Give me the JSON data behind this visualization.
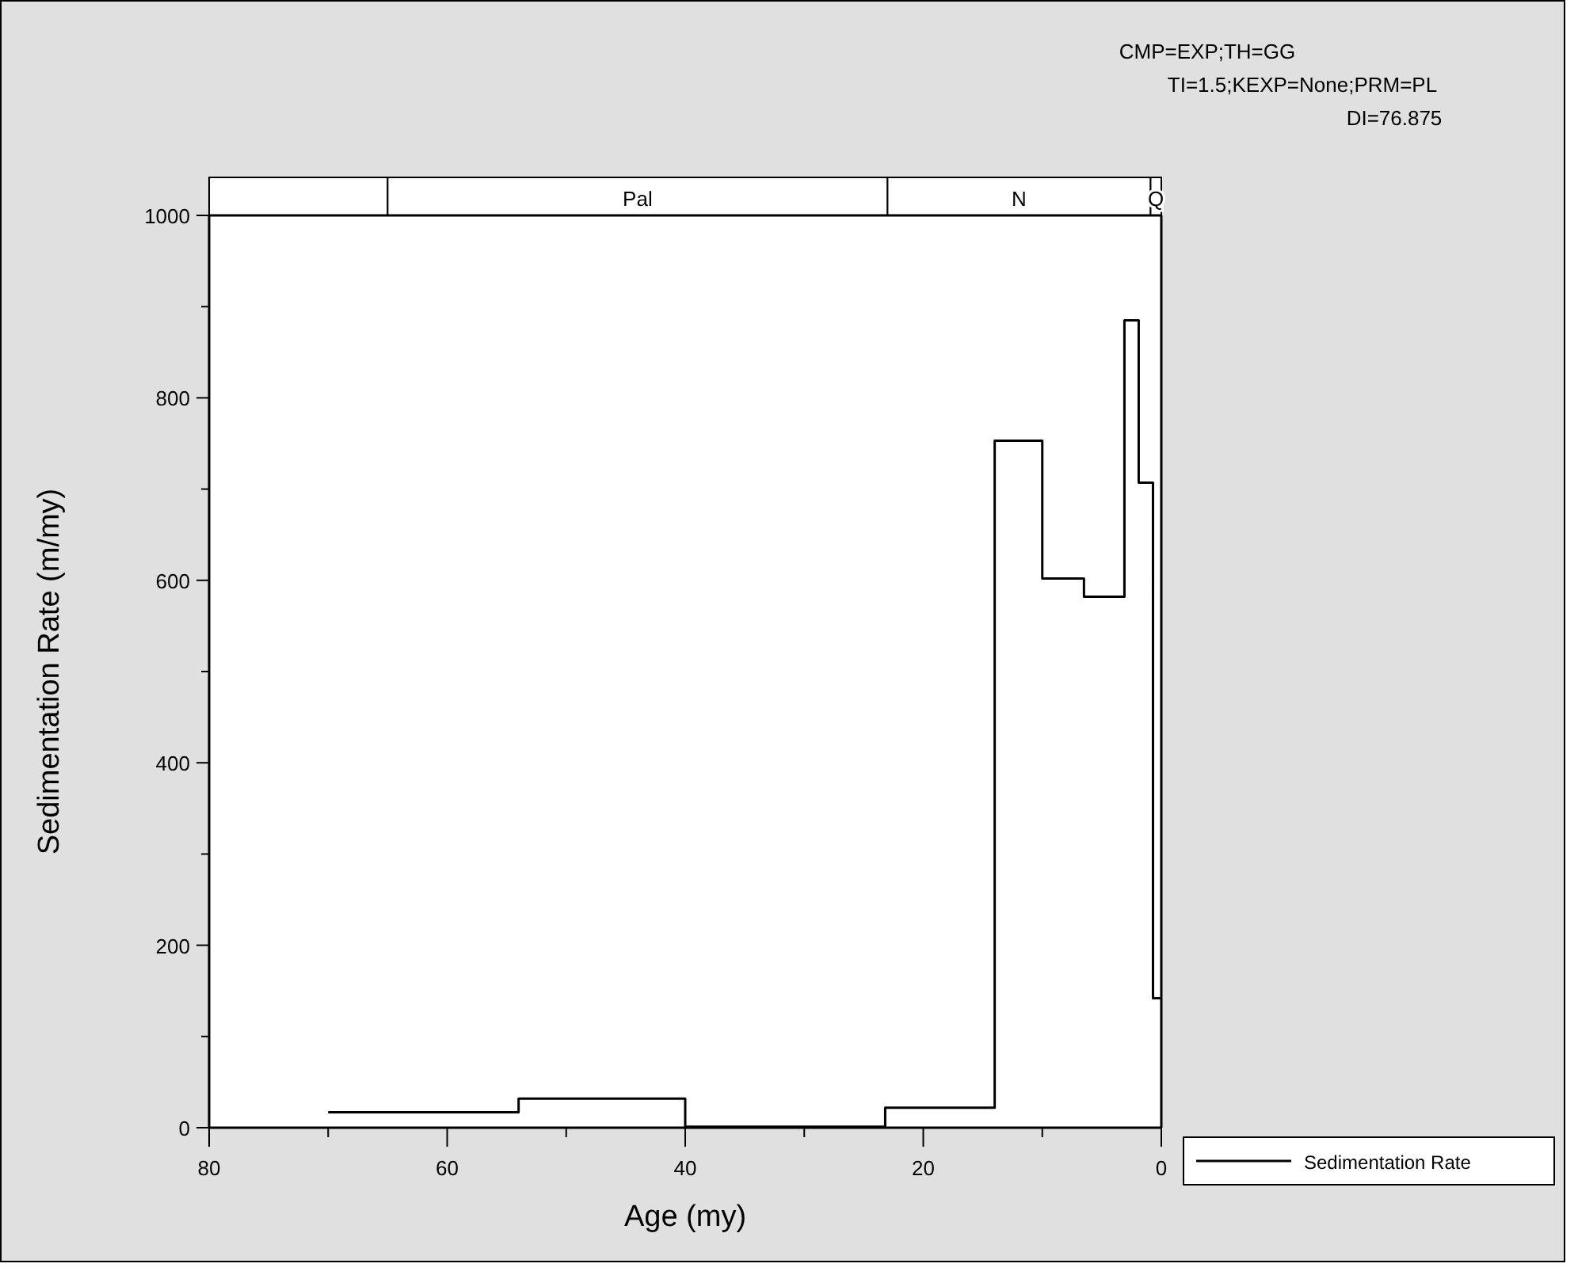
{
  "chart_data": {
    "type": "step",
    "xlabel": "Age (my)",
    "ylabel": "Sedimentation Rate (m/my)",
    "x": [
      70,
      54,
      40,
      23.2,
      14,
      10,
      6.5,
      3.1,
      1.9,
      0.7,
      0
    ],
    "series": [
      {
        "name": "Sedimentation Rate",
        "color": "#000000",
        "values": [
          17,
          32,
          1,
          22,
          753,
          602,
          582,
          885,
          707,
          142,
          142
        ]
      }
    ],
    "xlim": [
      80,
      0
    ],
    "xticks": [
      80,
      {
        "value": 70,
        "label": null
      },
      60,
      {
        "value": 50,
        "label": null
      },
      40,
      {
        "value": 30,
        "label": null
      },
      20,
      {
        "value": 10,
        "label": null
      },
      0
    ],
    "ylim": [
      0,
      1000
    ],
    "yticks": [
      0,
      {
        "value": 100,
        "label": null
      },
      200,
      {
        "value": 300,
        "label": null
      },
      400,
      {
        "value": 500,
        "label": null
      },
      600,
      {
        "value": 700,
        "label": null
      },
      800,
      {
        "value": 900,
        "label": null
      },
      1000
    ],
    "bands": [
      {
        "axis": "x",
        "from": 80,
        "to": 65,
        "label": null,
        "color": "#ffffff"
      },
      {
        "axis": "x",
        "from": 65,
        "to": 23,
        "label": "Pal",
        "color": "#ffffff"
      },
      {
        "axis": "x",
        "from": 23,
        "to": 0.9,
        "label": "N",
        "color": "#ffffff"
      },
      {
        "axis": "x",
        "from": 0.9,
        "to": 0,
        "label": "Q",
        "color": "#ffffff"
      }
    ],
    "annotations": [
      "CMP=EXP;TH=GG",
      "TI=1.5;KEXP=None;PRM=PL",
      "DI=76.875"
    ],
    "legend": "bottom right",
    "grid": false
  }
}
